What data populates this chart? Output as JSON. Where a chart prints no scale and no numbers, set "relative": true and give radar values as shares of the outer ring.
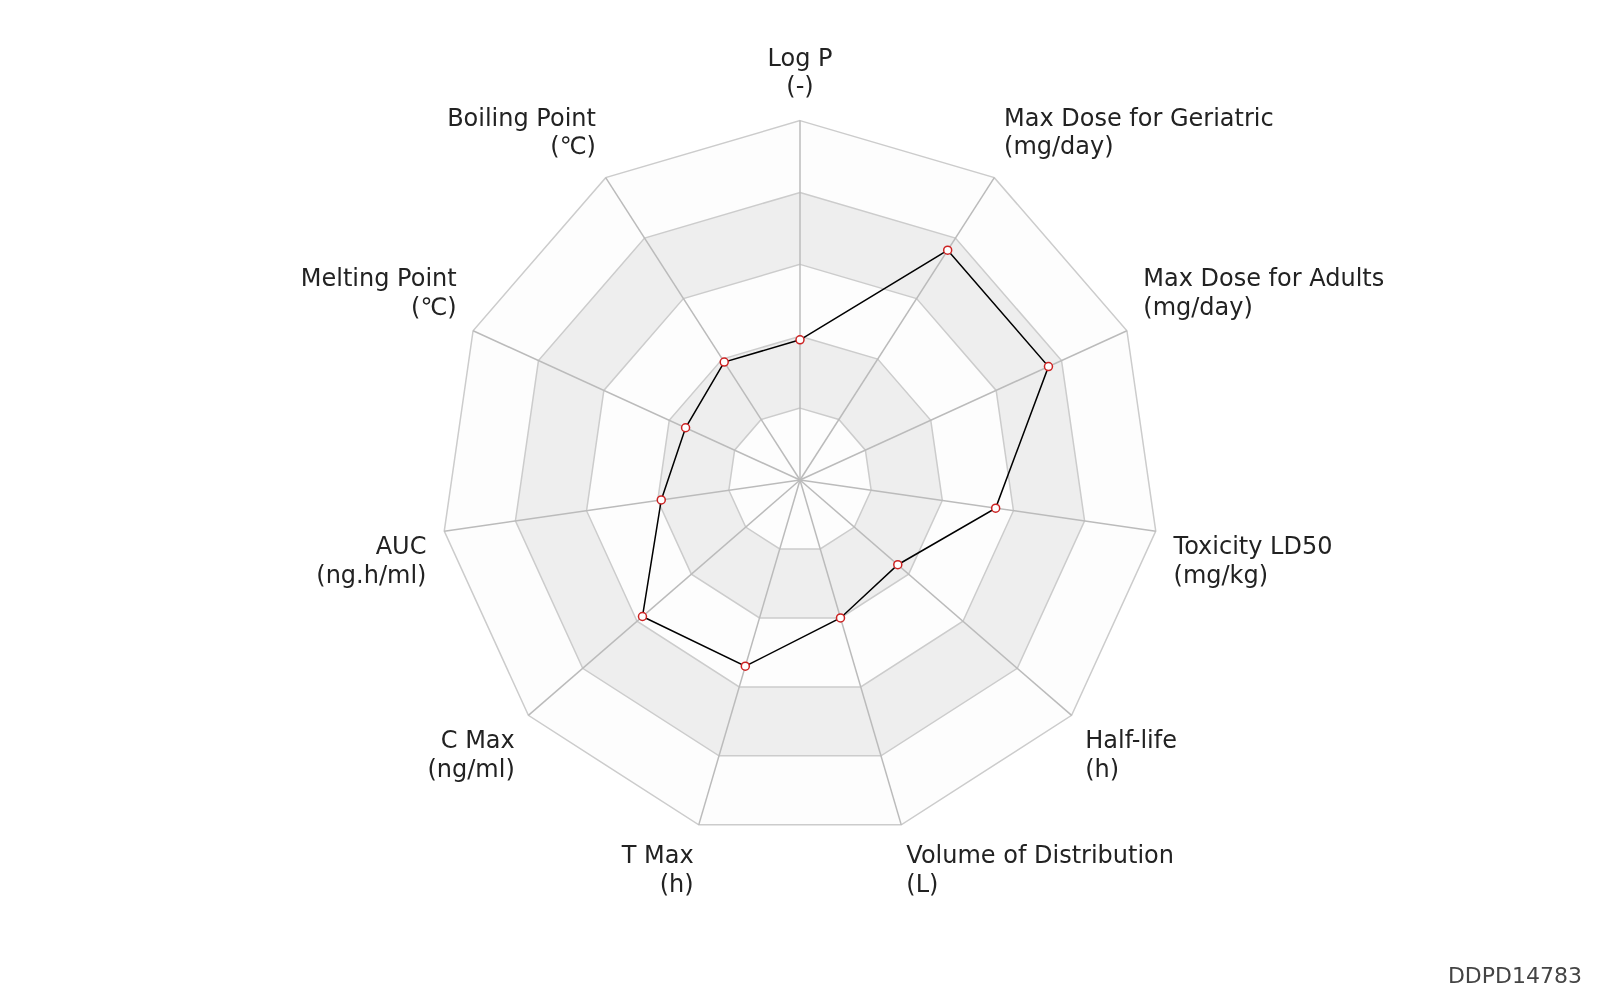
{
  "chart_data": {
    "type": "radar",
    "relative": true,
    "categories": [
      "Log P\n(-)",
      "Max Dose for Geriatric\n(mg/day)",
      "Max Dose for Adults\n(mg/day)",
      "Toxicity LD50\n(mg/kg)",
      "Half-life\n(h)",
      "Volume of Distribution\n(L)",
      "T Max\n(h)",
      "C Max\n(ng/ml)",
      "AUC\n(ng.h/ml)",
      "Melting Point\n(℃)",
      "Boiling Point\n(℃)"
    ],
    "series": [
      {
        "color": "#000000",
        "values": [
          0.39,
          0.76,
          0.76,
          0.55,
          0.36,
          0.4,
          0.54,
          0.58,
          0.39,
          0.35,
          0.39
        ]
      }
    ],
    "marker": "circle",
    "grid": true,
    "legend": false,
    "annotations": [
      "DDPD14783"
    ]
  }
}
